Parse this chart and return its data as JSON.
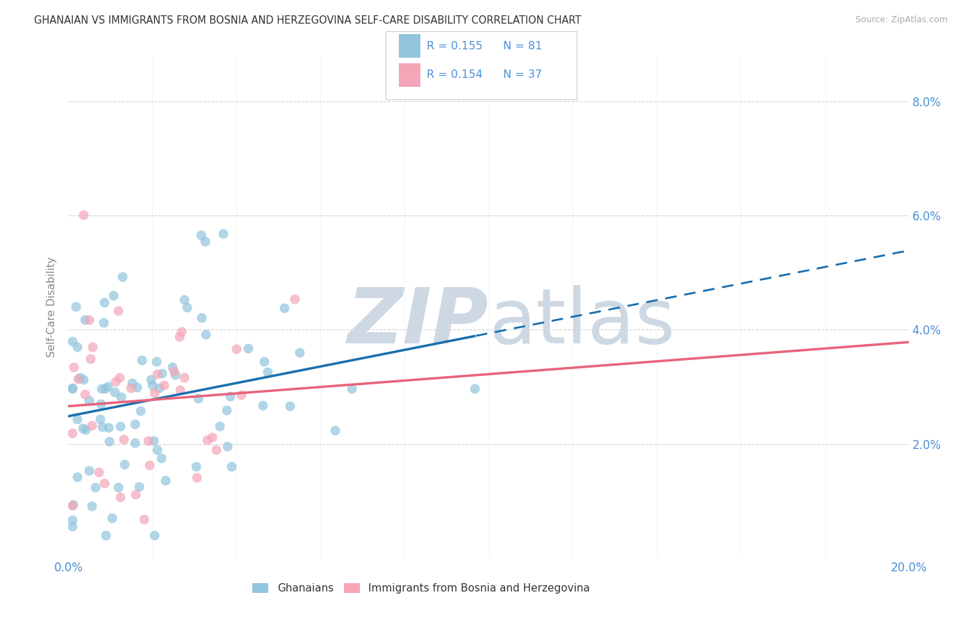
{
  "title": "GHANAIAN VS IMMIGRANTS FROM BOSNIA AND HERZEGOVINA SELF-CARE DISABILITY CORRELATION CHART",
  "source": "Source: ZipAtlas.com",
  "ylabel": "Self-Care Disability",
  "xlim": [
    0.0,
    0.2
  ],
  "ylim": [
    0.0,
    0.088
  ],
  "yticks": [
    0.02,
    0.04,
    0.06,
    0.08
  ],
  "ytick_labels": [
    "2.0%",
    "4.0%",
    "6.0%",
    "8.0%"
  ],
  "xticks": [
    0.0,
    0.02,
    0.04,
    0.06,
    0.08,
    0.1,
    0.12,
    0.14,
    0.16,
    0.18,
    0.2
  ],
  "xtick_labels": [
    "0.0%",
    "",
    "",
    "",
    "",
    "",
    "",
    "",
    "",
    "",
    "20.0%"
  ],
  "legend_r1": "R = 0.155",
  "legend_n1": "N = 81",
  "legend_r2": "R = 0.154",
  "legend_n2": "N = 37",
  "color_blue": "#92c5de",
  "color_pink": "#f4a6b8",
  "color_trend_blue": "#1a6faf",
  "color_trend_pink": "#e8647a",
  "watermark_color": "#cdd8e3",
  "tick_color": "#4a90d9",
  "grid_color": "#d0d0d0",
  "gh_seed": 10,
  "bo_seed": 20
}
